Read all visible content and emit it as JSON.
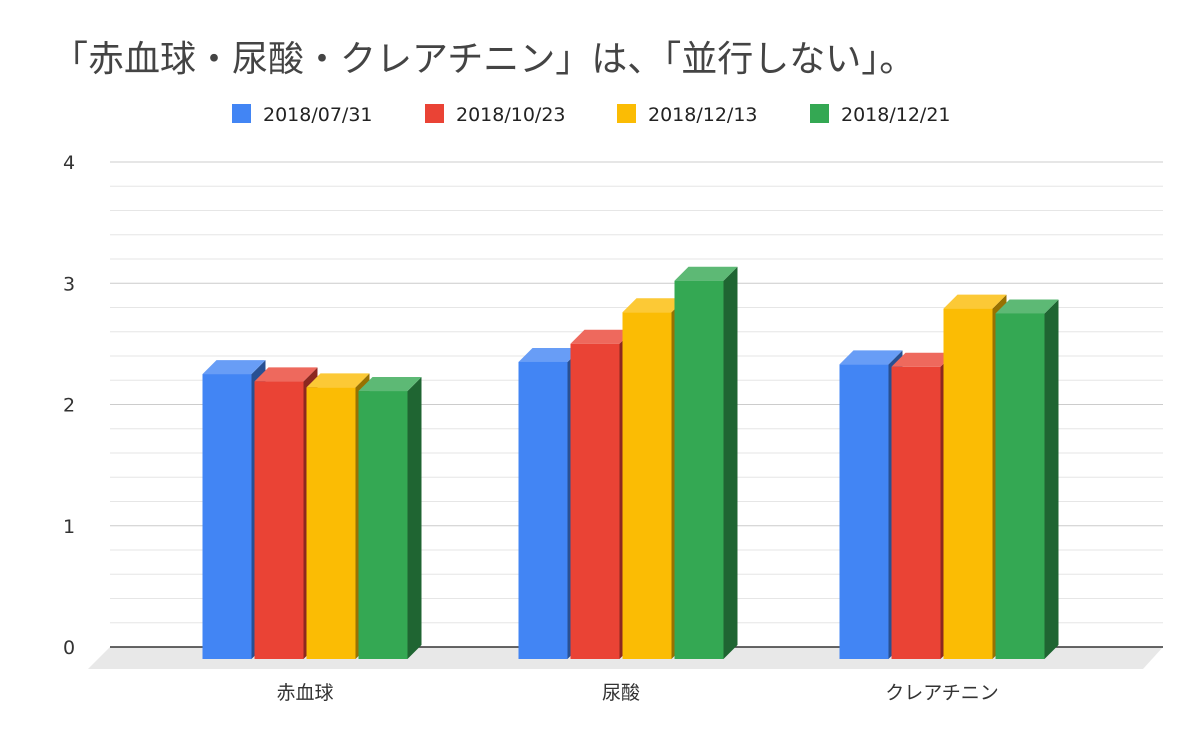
{
  "chart_data": {
    "type": "bar",
    "title": "「赤血球・尿酸・クレアチニン」は、「並行しない」。",
    "xlabel": "",
    "ylabel": "",
    "categories": [
      "赤血球",
      "尿酸",
      "クレアチニン"
    ],
    "series": [
      {
        "name": "2018/07/31",
        "values": [
          2.35,
          2.45,
          2.43
        ],
        "color": "#4285F4"
      },
      {
        "name": "2018/10/23",
        "values": [
          2.29,
          2.6,
          2.41
        ],
        "color": "#EA4335"
      },
      {
        "name": "2018/12/13",
        "values": [
          2.24,
          2.86,
          2.89
        ],
        "color": "#FBBC04"
      },
      {
        "name": "2018/12/21",
        "values": [
          2.21,
          3.12,
          2.85
        ],
        "color": "#34A853"
      }
    ],
    "ylim": [
      0,
      4
    ],
    "yticks": [
      "0",
      "1",
      "2",
      "3",
      "4"
    ],
    "grid": true,
    "legend_position": "top",
    "style": "3d"
  }
}
